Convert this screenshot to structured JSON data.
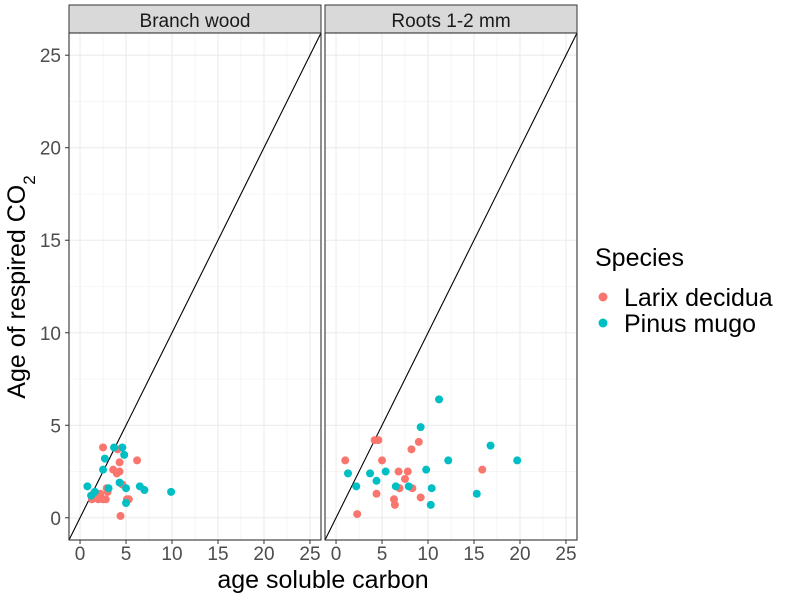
{
  "chart_data": {
    "type": "scatter",
    "xlabel": "age soluble carbon",
    "ylabel_main": "Age of respired CO",
    "ylabel_subscript": "2",
    "xlim": [
      -1.2,
      26.2
    ],
    "ylim": [
      -1.2,
      26.2
    ],
    "x_ticks": [
      0,
      5,
      10,
      15,
      20,
      25
    ],
    "y_ticks": [
      0,
      5,
      10,
      15,
      20,
      25
    ],
    "grid": true,
    "reference_line": "y = x",
    "legend": {
      "title": "Species",
      "position": "right",
      "entries": [
        {
          "label": "Larix decidua",
          "color": "#F8766D"
        },
        {
          "label": "Pinus mugo",
          "color": "#00BFC4"
        }
      ]
    },
    "panels": [
      {
        "title": "Branch wood",
        "series": [
          {
            "name": "Larix decidua",
            "color": "#F8766D",
            "points": [
              [
                1.3,
                1.0
              ],
              [
                1.7,
                1.2
              ],
              [
                2.0,
                1.0
              ],
              [
                2.2,
                1.3
              ],
              [
                2.5,
                1.0
              ],
              [
                2.8,
                1.0
              ],
              [
                2.5,
                3.8
              ],
              [
                2.9,
                1.6
              ],
              [
                3.0,
                1.4
              ],
              [
                3.6,
                2.6
              ],
              [
                4.0,
                2.4
              ],
              [
                4.1,
                3.7
              ],
              [
                4.3,
                2.5
              ],
              [
                4.3,
                3.0
              ],
              [
                4.4,
                0.1
              ],
              [
                4.6,
                1.8
              ],
              [
                5.3,
                1.0
              ],
              [
                5.1,
                1.0
              ],
              [
                6.2,
                3.1
              ],
              [
                1.5,
                1.3
              ]
            ]
          },
          {
            "name": "Pinus mugo",
            "color": "#00BFC4",
            "points": [
              [
                0.8,
                1.7
              ],
              [
                1.2,
                1.2
              ],
              [
                1.6,
                1.4
              ],
              [
                2.5,
                2.6
              ],
              [
                2.7,
                3.2
              ],
              [
                3.1,
                1.6
              ],
              [
                3.7,
                3.8
              ],
              [
                4.3,
                1.9
              ],
              [
                4.6,
                3.8
              ],
              [
                4.8,
                3.4
              ],
              [
                5.0,
                1.6
              ],
              [
                5.0,
                0.8
              ],
              [
                6.5,
                1.7
              ],
              [
                7.0,
                1.5
              ],
              [
                9.9,
                1.4
              ]
            ]
          }
        ]
      },
      {
        "title": "Roots 1-2 mm",
        "series": [
          {
            "name": "Larix decidua",
            "color": "#F8766D",
            "points": [
              [
                1.0,
                3.1
              ],
              [
                2.3,
                0.2
              ],
              [
                4.2,
                4.2
              ],
              [
                4.6,
                4.2
              ],
              [
                4.4,
                1.3
              ],
              [
                5.0,
                3.1
              ],
              [
                6.3,
                1.0
              ],
              [
                6.4,
                0.7
              ],
              [
                6.8,
                2.5
              ],
              [
                6.9,
                1.6
              ],
              [
                7.5,
                2.1
              ],
              [
                7.8,
                2.5
              ],
              [
                8.2,
                3.7
              ],
              [
                8.3,
                1.6
              ],
              [
                9.0,
                4.1
              ],
              [
                9.2,
                1.1
              ],
              [
                15.9,
                2.6
              ]
            ]
          },
          {
            "name": "Pinus mugo",
            "color": "#00BFC4",
            "points": [
              [
                1.3,
                2.4
              ],
              [
                2.2,
                1.7
              ],
              [
                3.7,
                2.4
              ],
              [
                4.4,
                2.0
              ],
              [
                5.4,
                2.5
              ],
              [
                6.5,
                1.7
              ],
              [
                7.9,
                1.7
              ],
              [
                9.2,
                4.9
              ],
              [
                9.8,
                2.6
              ],
              [
                10.3,
                0.7
              ],
              [
                10.4,
                1.6
              ],
              [
                11.2,
                6.4
              ],
              [
                12.2,
                3.1
              ],
              [
                15.3,
                1.3
              ],
              [
                16.8,
                3.9
              ],
              [
                19.7,
                3.1
              ]
            ]
          }
        ]
      }
    ]
  }
}
